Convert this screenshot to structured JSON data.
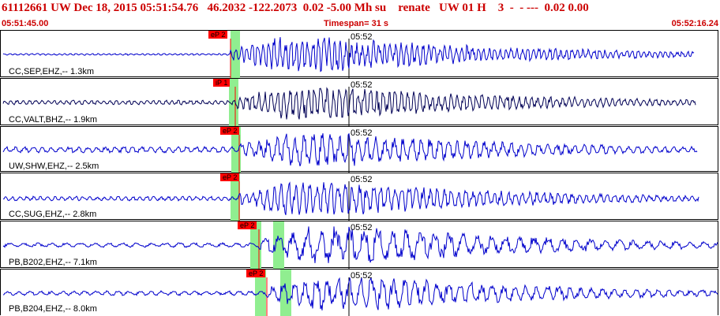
{
  "header": {
    "event_line": "61112661 UW Dec 18, 2015 05:51:54.76   46.2032 -122.2073  0.02 -5.00 Mh su    renate   UW 01 H    3  -  - ---  0.02 0.00",
    "start_time": "05:51:45.00",
    "timespan": "Timespan=  31 s",
    "end_time": "05:52:16.24"
  },
  "colors": {
    "header_red": "#cc0000",
    "trace_blue": "#0000cc",
    "trace_dark": "#000055",
    "pick_red": "#ff0000",
    "window_green": "#90ee90"
  },
  "traces": [
    {
      "label": "CC,SEP,EHZ,-- 1.3km",
      "time_tick": "05:52",
      "pick": "eP 2",
      "color": "#0000cc"
    },
    {
      "label": "CC,VALT,BHZ,-- 1.9km",
      "time_tick": "05:52",
      "pick": "iP 1",
      "color": "#000055"
    },
    {
      "label": "UW,SHW,EHZ,-- 2.5km",
      "time_tick": "05:52",
      "pick": "eP 2",
      "color": "#0000cc"
    },
    {
      "label": "CC,SUG,EHZ,-- 2.8km",
      "time_tick": "05:52",
      "pick": "eP 2",
      "color": "#0000cc"
    },
    {
      "label": "PB,B202,EHZ,-- 7.1km",
      "time_tick": "05:52",
      "pick": "eP 2",
      "color": "#0000cc"
    },
    {
      "label": "PB,B204,EHZ,-- 8.0km",
      "time_tick": "05:52",
      "pick": "eP 2",
      "color": "#0000cc"
    }
  ]
}
